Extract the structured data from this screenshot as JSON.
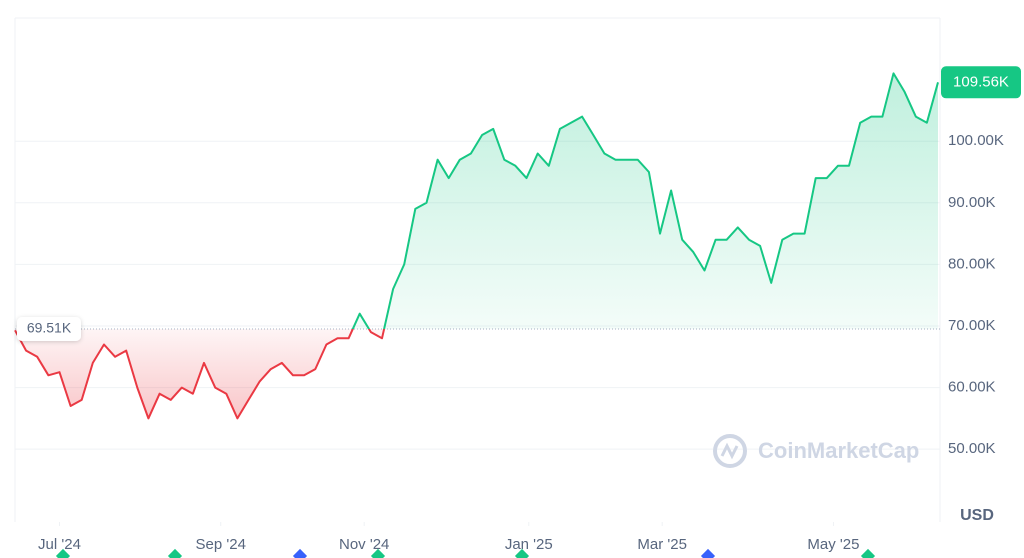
{
  "chart_data": {
    "type": "line",
    "values": [
      69300,
      66000,
      65000,
      62000,
      62500,
      57000,
      58000,
      64000,
      67000,
      65000,
      66000,
      60000,
      55000,
      59000,
      58000,
      60000,
      59000,
      64000,
      60000,
      59000,
      55000,
      58000,
      61000,
      63000,
      64000,
      62000,
      62000,
      63000,
      67000,
      68000,
      68000,
      72000,
      69000,
      68000,
      76000,
      80000,
      89000,
      90000,
      97000,
      94000,
      97000,
      98000,
      101000,
      102000,
      97000,
      96000,
      94000,
      98000,
      96000,
      102000,
      103000,
      104000,
      101000,
      98000,
      97000,
      97000,
      97000,
      95000,
      85000,
      92000,
      84000,
      82000,
      79000,
      84000,
      84000,
      86000,
      84000,
      83000,
      77000,
      84000,
      85000,
      85000,
      94000,
      94000,
      96000,
      96000,
      103000,
      104000,
      104000,
      111000,
      108000,
      104000,
      103000,
      109560
    ],
    "current_price_label": "109.56K",
    "baseline": {
      "value": 69510,
      "label": "69.51K"
    },
    "up_color": "#16c784",
    "down_color": "#ea3943",
    "xlim": [
      0,
      83
    ],
    "xticks": [
      {
        "value": 4,
        "label": "Jul '24"
      },
      {
        "value": 18.5,
        "label": "Sep '24"
      },
      {
        "value": 31.4,
        "label": "Nov '24"
      },
      {
        "value": 46.2,
        "label": "Jan '25"
      },
      {
        "value": 58.2,
        "label": "Mar '25"
      },
      {
        "value": 73.6,
        "label": "May '25"
      }
    ],
    "ylim": [
      38500,
      120000
    ],
    "yticks": [
      {
        "value": 50000,
        "label": "50.00K"
      },
      {
        "value": 60000,
        "label": "60.00K"
      },
      {
        "value": 70000,
        "label": "70.00K"
      },
      {
        "value": 80000,
        "label": "80.00K"
      },
      {
        "value": 90000,
        "label": "90.00K"
      },
      {
        "value": 100000,
        "label": "100.00K"
      }
    ],
    "grid": true,
    "unit_label": "USD",
    "watermark": "CoinMarketCap"
  }
}
